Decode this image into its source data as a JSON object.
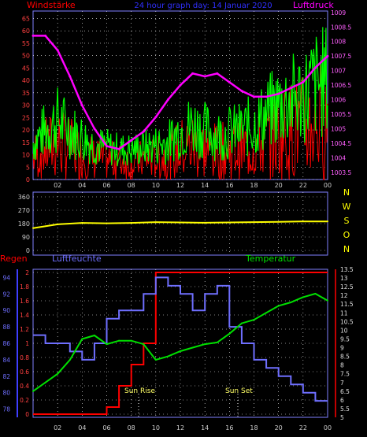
{
  "header": {
    "left": "Windstärke",
    "center": "24 hour graph day: 14 Januar 2020",
    "right": "Luftdruck"
  },
  "colors": {
    "wind_avg": "#ff0000",
    "wind_gust": "#00ff00",
    "pressure": "#ff00ff",
    "direction": "#ffff00",
    "rain": "#ff0000",
    "humidity": "#6f6fff",
    "temperature": "#00e000",
    "grid": "#ffffff",
    "text": "#cccccc",
    "accent_axis": "#7f7fff"
  },
  "x_ticks": [
    "02",
    "04",
    "06",
    "08",
    "10",
    "12",
    "14",
    "16",
    "18",
    "20",
    "22",
    "00"
  ],
  "panel_top": {
    "left_ticks": [
      "0",
      "5",
      "10",
      "15",
      "20",
      "25",
      "30",
      "35",
      "40",
      "45",
      "50",
      "55",
      "60",
      "65"
    ],
    "right_ticks": [
      "1003.5",
      "1004",
      "1004.5",
      "1005",
      "1005.5",
      "1006",
      "1006.5",
      "1007",
      "1007.5",
      "1008",
      "1008.5",
      "1009"
    ]
  },
  "panel_mid": {
    "left_ticks": [
      "0",
      "90",
      "180",
      "270",
      "360"
    ],
    "compass": [
      "N",
      "W",
      "S",
      "O",
      "N"
    ]
  },
  "panel_bottom": {
    "labels": {
      "rain": "Regen",
      "humidity": "Luftfeuchte",
      "temperature": "Temperatur"
    },
    "rain_ticks": [
      "0",
      "0.2",
      "0.4",
      "0.6",
      "0.8",
      "1",
      "1.2",
      "1.4",
      "1.6",
      "1.8",
      "2"
    ],
    "hum_ticks": [
      "78",
      "80",
      "82",
      "84",
      "86",
      "88",
      "90",
      "92",
      "94"
    ],
    "temp_ticks": [
      "5",
      "5.5",
      "6",
      "6.5",
      "7",
      "7.5",
      "8",
      "8.5",
      "9",
      "9.5",
      "10",
      "10.5",
      "11",
      "11.5",
      "12",
      "12.5",
      "13",
      "13.5"
    ],
    "annotations": {
      "sunrise": "Sun Rise",
      "sunset": "Sun Set"
    }
  },
  "chart_data": [
    {
      "type": "line",
      "title": "24 hour graph day: 14 Januar 2020",
      "xlabel": "",
      "x": [
        0,
        1,
        2,
        3,
        4,
        5,
        6,
        7,
        8,
        9,
        10,
        11,
        12,
        13,
        14,
        15,
        16,
        17,
        18,
        19,
        20,
        21,
        22,
        23,
        24
      ],
      "series": [
        {
          "name": "Luftdruck",
          "axis": "right",
          "ylim": [
            1003.25,
            1009.05
          ],
          "values": [
            1008.2,
            1008.2,
            1007.7,
            1006.8,
            1005.8,
            1005.0,
            1004.4,
            1004.3,
            1004.6,
            1004.9,
            1005.4,
            1006.0,
            1006.5,
            1006.9,
            1006.8,
            1006.9,
            1006.6,
            1006.3,
            1006.1,
            1006.1,
            1006.2,
            1006.4,
            1006.6,
            1007.1,
            1007.5
          ]
        },
        {
          "name": "Windstärke",
          "axis": "left",
          "ylim": [
            0,
            68
          ],
          "values": [
            15,
            20,
            24,
            20,
            17,
            14,
            13,
            12,
            12,
            13,
            14,
            15,
            20,
            22,
            20,
            18,
            19,
            20,
            22,
            26,
            30,
            32,
            34,
            38,
            40
          ]
        }
      ]
    },
    {
      "type": "line",
      "title": "",
      "x": [
        0,
        2,
        4,
        6,
        8,
        10,
        12,
        14,
        16,
        18,
        20,
        22,
        24
      ],
      "series": [
        {
          "name": "",
          "ylim": [
            0,
            360
          ],
          "values": [
            150,
            175,
            185,
            182,
            185,
            190,
            188,
            186,
            188,
            190,
            192,
            195,
            195
          ]
        }
      ]
    },
    {
      "type": "line",
      "title": "",
      "x": [
        0,
        1,
        2,
        3,
        4,
        5,
        6,
        7,
        8,
        9,
        10,
        11,
        12,
        13,
        14,
        15,
        16,
        17,
        18,
        19,
        20,
        21,
        22,
        23,
        24
      ],
      "series": [
        {
          "name": "Regen",
          "axis": "rain",
          "ylim": [
            0,
            2
          ],
          "values": [
            0,
            0,
            0,
            0,
            0,
            0,
            0.1,
            0.4,
            0.7,
            1.0,
            2.0,
            2.0,
            2.0,
            2.0,
            2.0,
            2.0,
            2.0,
            2.0,
            2.0,
            2.0,
            2.0,
            2.0,
            2.0,
            2.0,
            2.0
          ]
        },
        {
          "name": "Luftfeuchte",
          "axis": "hum",
          "ylim": [
            77,
            95
          ],
          "values": [
            87,
            86,
            86,
            85,
            84,
            86,
            89,
            90,
            90,
            92,
            94,
            93,
            92,
            90,
            92,
            93,
            88,
            86,
            84,
            83,
            82,
            81,
            80,
            79,
            79
          ]
        },
        {
          "name": "Temperatur",
          "axis": "temp",
          "ylim": [
            5,
            13.5
          ],
          "values": [
            6.5,
            7,
            7.5,
            8.3,
            9.5,
            9.7,
            9.2,
            9.4,
            9.4,
            9.2,
            8.3,
            8.5,
            8.8,
            9,
            9.2,
            9.3,
            9.8,
            10.4,
            10.6,
            11,
            11.4,
            11.6,
            11.9,
            12.1,
            11.7
          ]
        }
      ]
    }
  ]
}
